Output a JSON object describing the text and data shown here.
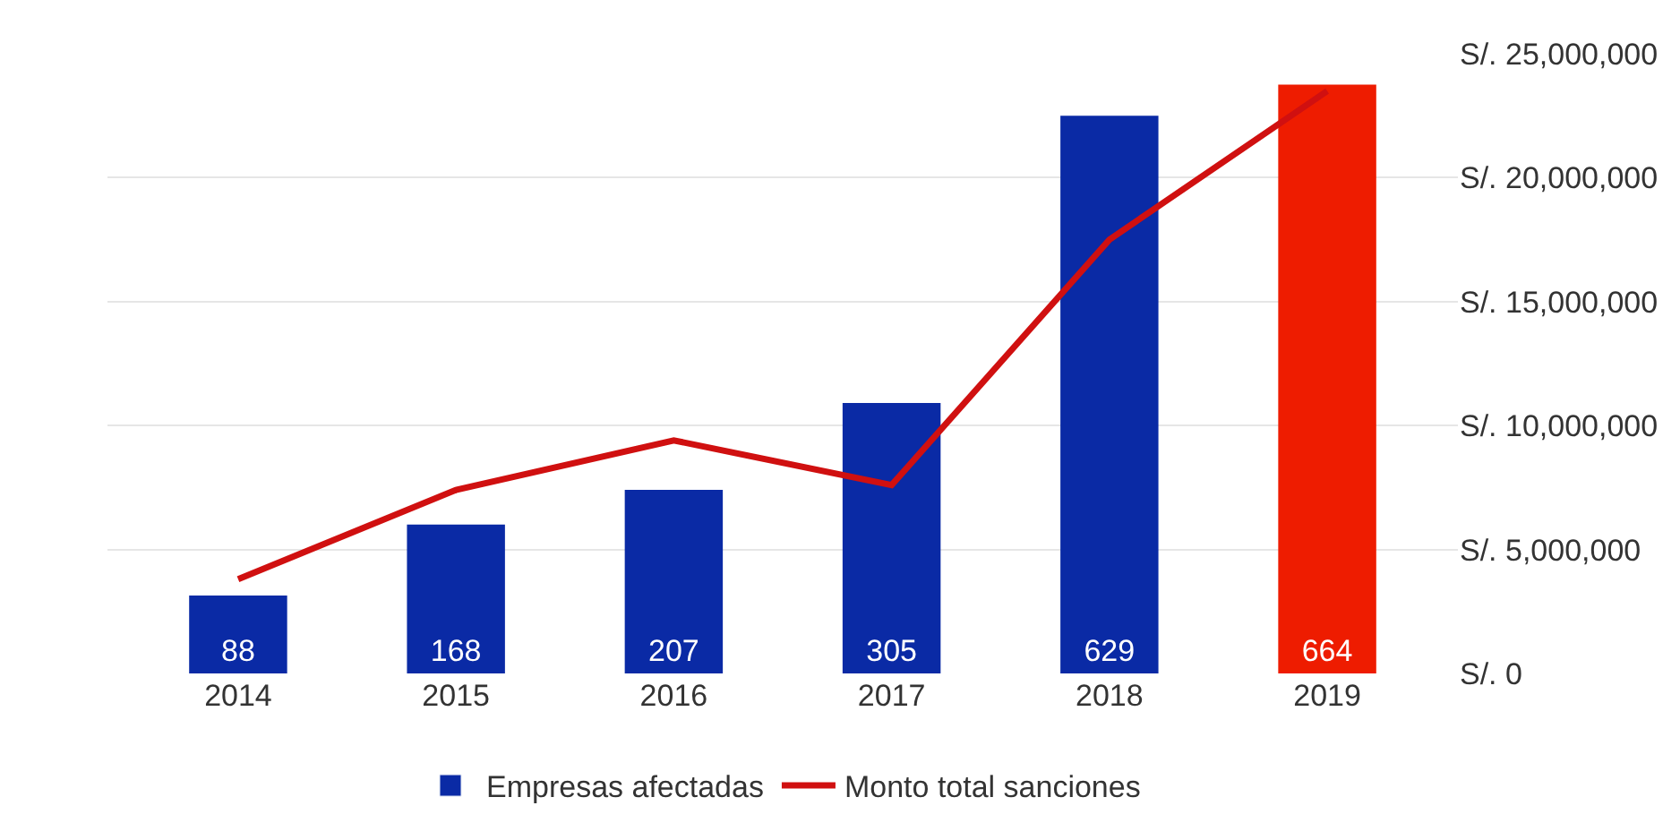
{
  "chart_data": {
    "type": "bar",
    "categories": [
      "2014",
      "2015",
      "2016",
      "2017",
      "2018",
      "2019"
    ],
    "series": [
      {
        "name": "Empresas afectadas",
        "color": "#0a2aa5",
        "colors": [
          "#0a2aa5",
          "#0a2aa5",
          "#0a2aa5",
          "#0a2aa5",
          "#0a2aa5",
          "#ee1c00"
        ],
        "values": [
          88,
          168,
          207,
          305,
          629,
          664
        ],
        "value_labels": [
          "88",
          "168",
          "207",
          "305",
          "629",
          "664"
        ]
      },
      {
        "name": "Monto total sanciones",
        "type": "line",
        "axis": "y2",
        "color": "#d01010",
        "marker": "none",
        "values": [
          3800000,
          7400000,
          9400000,
          7600000,
          17500000,
          23500000
        ]
      }
    ],
    "y2lim": [
      0,
      25000000
    ],
    "y2ticks": [
      {
        "value": 0,
        "label": "S/. 0"
      },
      {
        "value": 5000000,
        "label": "S/. 5,000,000"
      },
      {
        "value": 10000000,
        "label": "S/. 10,000,000"
      },
      {
        "value": 15000000,
        "label": "S/. 15,000,000"
      },
      {
        "value": 20000000,
        "label": "S/. 20,000,000"
      },
      {
        "value": 25000000,
        "label": "S/. 25,000,000"
      }
    ],
    "tick_labels": [
      "x",
      "y2"
    ],
    "grid": "y2",
    "legend": "bottom"
  }
}
